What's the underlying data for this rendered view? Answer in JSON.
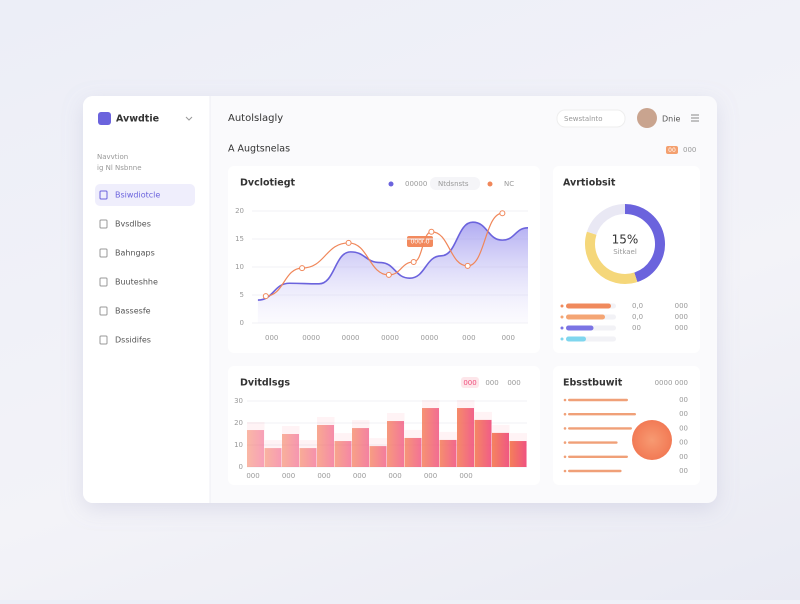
{
  "app": {
    "name": "Avwdtie"
  },
  "sidebar": {
    "section": "Navvtion",
    "subsection": "ig Nl Nsbnne",
    "items": [
      "Bsiwdiotcle",
      "Bvsdlbes",
      "Bahngaps",
      "Buuteshhe",
      "Bassesfe",
      "Dssidifes"
    ]
  },
  "topbar": {
    "title": "Autolslagly",
    "search": "Sewstalnto",
    "user": "Dnie"
  },
  "section": {
    "title": "A Augtsnelas",
    "badge": "00",
    "link": "000"
  },
  "line_chart": {
    "type": "line",
    "title": "Dvclotiegt",
    "legend_pill": "Ntdsnsts",
    "annotation": "00000",
    "xlim": [
      -0.5,
      6.5
    ],
    "xticks": [
      {
        "value": 0,
        "label": "000"
      },
      {
        "value": 1,
        "label": "0000"
      },
      {
        "value": 2,
        "label": "0000"
      },
      {
        "value": 3,
        "label": "0000"
      },
      {
        "value": 4,
        "label": "0000"
      },
      {
        "value": 5,
        "label": "000"
      },
      {
        "value": 6,
        "label": "000"
      }
    ],
    "ylim": [
      0,
      20
    ],
    "yticks": [
      0,
      5,
      10,
      15,
      20
    ],
    "series": [
      {
        "name": "00000",
        "color": "#6b63dd",
        "fill": true,
        "x": [
          -0.35,
          0.45,
          1.2,
          2,
          2.75,
          3.5,
          4.3,
          5.1,
          5.85,
          6.5
        ],
        "values": [
          4.1,
          7.1,
          7,
          12.7,
          10.8,
          8,
          12,
          18,
          14.8,
          17
        ]
      },
      {
        "name": "NC",
        "color": "#f0875a",
        "markers": true,
        "x": [
          -0.15,
          0.77,
          1.95,
          2.97,
          3.6,
          4.05,
          4.97,
          5.85
        ],
        "values": [
          4.8,
          9.8,
          14.3,
          8.6,
          10.9,
          16.3,
          10.2,
          19.6
        ]
      }
    ]
  },
  "donut": {
    "type": "pie",
    "title": "Avrtiobsit",
    "center_value": "15%",
    "center_label": "Sitkael",
    "values": [
      45,
      35,
      20
    ],
    "colors": [
      "#6b63dd",
      "#f5d77a",
      "#e9e8f4"
    ]
  },
  "donut_bars": {
    "type": "bar",
    "orientation": "horizontal",
    "xlim": [
      0,
      100
    ],
    "values": [
      90,
      78,
      55,
      40
    ],
    "colors": [
      "#f08a5d",
      "#f4a574",
      "#7b74e4",
      "#7fd6ee"
    ],
    "notes": [
      "0,0",
      "0,0",
      "00"
    ],
    "side_notes": [
      "000",
      "000",
      "000"
    ]
  },
  "bar_chart": {
    "type": "bar",
    "title": "Dvitdlsgs",
    "tabs": [
      "000",
      "000",
      "000"
    ],
    "ylim": [
      0,
      30
    ],
    "yticks": [
      0,
      10,
      20,
      30
    ],
    "values": [
      16.8,
      8.6,
      15,
      8.6,
      19.1,
      11.8,
      17.7,
      9.5,
      20.9,
      13.2,
      26.8,
      12.3,
      26.8,
      21.4,
      15.5,
      11.8
    ],
    "xlabels": [
      "000",
      "000",
      "000",
      "000",
      "000",
      "000",
      "000"
    ]
  },
  "progress": {
    "type": "bar",
    "orientation": "horizontal",
    "title": "Ebsstbuwit",
    "link": "0000 000",
    "xlim": [
      0,
      100
    ],
    "values": [
      75,
      85,
      80,
      62,
      75,
      67
    ],
    "color": "#f0a078",
    "notes": [
      "00",
      "00",
      "00",
      "00",
      "00",
      "00"
    ]
  }
}
